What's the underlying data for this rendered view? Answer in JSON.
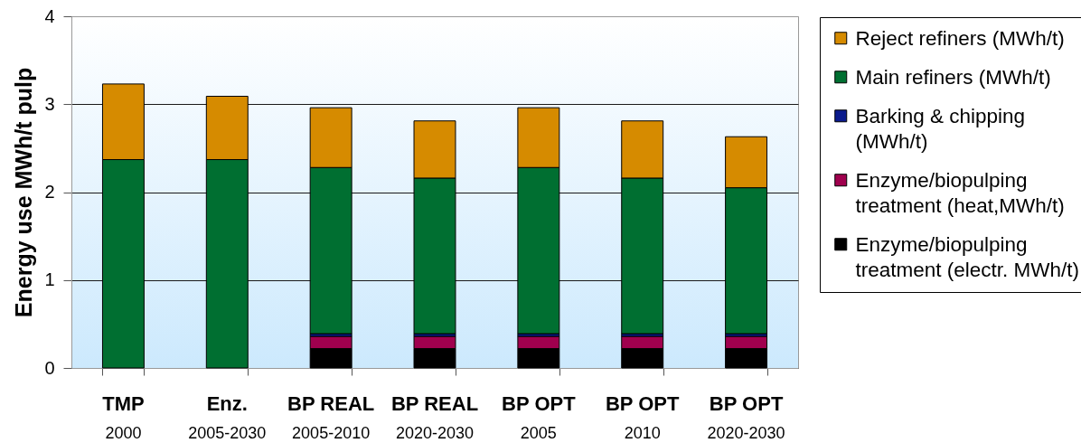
{
  "chart_data": {
    "type": "bar",
    "stacked": true,
    "ylabel": "Energy use MWh/t pulp",
    "categories": [
      "TMP\n2000",
      "Enz.\n2005-2030",
      "BP REAL\n2005-2010",
      "BP REAL\n2020-2030",
      "BP OPT\n2005",
      "BP OPT\n2010",
      "BP OPT\n2020-2030"
    ],
    "series": [
      {
        "name": "Enzyme/biopulping treatment  (electr. MWh/t)",
        "color": "#000000",
        "values": [
          null,
          null,
          0.22,
          0.22,
          0.22,
          0.22,
          0.22
        ]
      },
      {
        "name": "Enzyme/biopulping treatment  (heat,MWh/t)",
        "color": "#a0004e",
        "values": [
          null,
          null,
          0.14,
          0.14,
          0.14,
          0.14,
          0.14
        ]
      },
      {
        "name": "Barking & chipping (MWh/t)",
        "color": "#0a1a8c",
        "values": [
          null,
          null,
          0.03,
          0.03,
          0.03,
          0.03,
          0.03
        ]
      },
      {
        "name": "Main refiners (MWh/t)",
        "color": "#006f31",
        "values": [
          2.37,
          2.37,
          1.89,
          1.77,
          1.89,
          1.77,
          1.66
        ]
      },
      {
        "name": "Reject refiners (MWh/t)",
        "color": "#d68b00",
        "values": [
          0.86,
          0.72,
          0.68,
          0.65,
          0.68,
          0.65,
          0.58
        ]
      }
    ],
    "ylim": [
      0,
      4
    ],
    "yticks": [
      0,
      1,
      2,
      3,
      4
    ],
    "grid": "y",
    "legend": "right"
  }
}
